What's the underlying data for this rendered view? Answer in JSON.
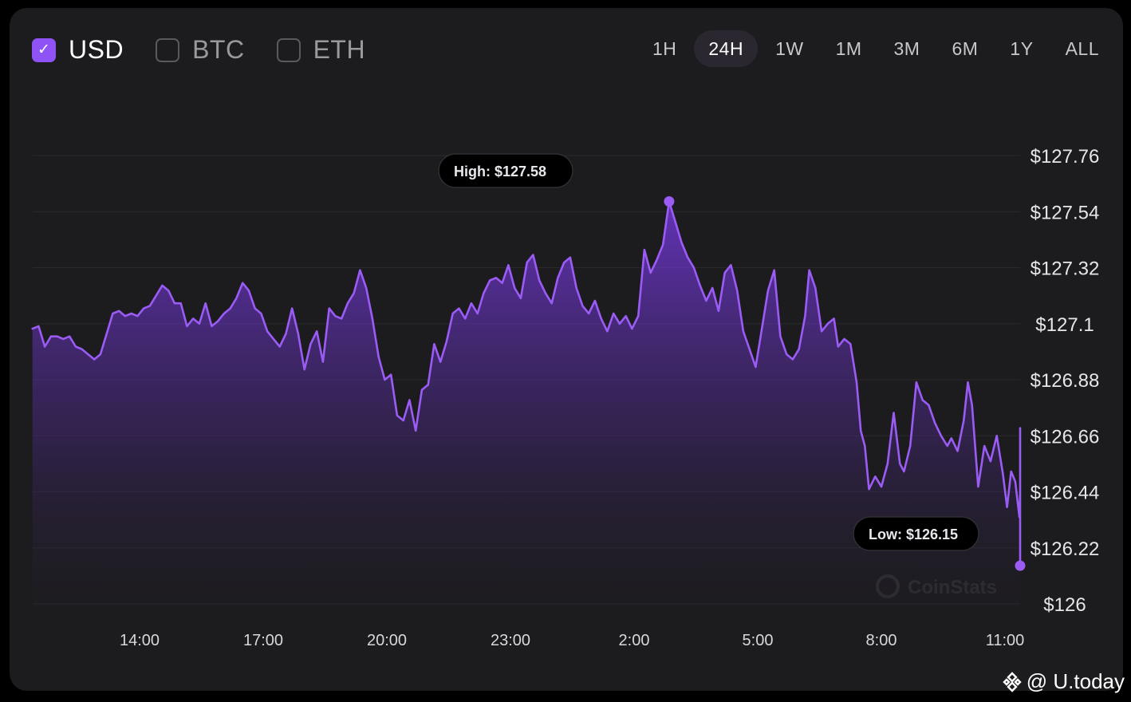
{
  "currencies": [
    {
      "label": "USD",
      "checked": true
    },
    {
      "label": "BTC",
      "checked": false
    },
    {
      "label": "ETH",
      "checked": false
    }
  ],
  "ranges": [
    {
      "label": "1H",
      "active": false
    },
    {
      "label": "24H",
      "active": true
    },
    {
      "label": "1W",
      "active": false
    },
    {
      "label": "1M",
      "active": false
    },
    {
      "label": "3M",
      "active": false
    },
    {
      "label": "6M",
      "active": false
    },
    {
      "label": "1Y",
      "active": false
    },
    {
      "label": "ALL",
      "active": false
    }
  ],
  "watermark": "CoinStats",
  "footer_brand": "@ U.today",
  "colors": {
    "accent": "#8e52f5",
    "card_bg": "#1c1c1e",
    "line": "#9b5cf6"
  },
  "chart_data": {
    "type": "area",
    "title": "",
    "xlabel": "",
    "ylabel": "",
    "x_ticks": [
      {
        "label": "14:00",
        "hour": 14
      },
      {
        "label": "17:00",
        "hour": 17
      },
      {
        "label": "20:00",
        "hour": 20
      },
      {
        "label": "23:00",
        "hour": 23
      },
      {
        "label": "2:00",
        "hour": 26
      },
      {
        "label": "5:00",
        "hour": 29
      },
      {
        "label": "8:00",
        "hour": 32
      },
      {
        "label": "11:00",
        "hour": 35
      }
    ],
    "y_ticks": [
      {
        "label": "$127.76",
        "value": 127.76
      },
      {
        "label": "$127.54",
        "value": 127.54
      },
      {
        "label": "$127.32",
        "value": 127.32
      },
      {
        "label": "$127.1",
        "value": 127.1
      },
      {
        "label": "$126.88",
        "value": 126.88
      },
      {
        "label": "$126.66",
        "value": 126.66
      },
      {
        "label": "$126.44",
        "value": 126.44
      },
      {
        "label": "$126.22",
        "value": 126.22
      },
      {
        "label": "$126",
        "value": 126.0
      }
    ],
    "ylim": [
      126.0,
      127.76
    ],
    "xlim": [
      11.4,
      35.35
    ],
    "grid": true,
    "series": [
      {
        "points": [
          [
            11.4,
            127.08
          ],
          [
            11.55,
            127.09
          ],
          [
            11.7,
            127.01
          ],
          [
            11.85,
            127.05
          ],
          [
            12.0,
            127.05
          ],
          [
            12.15,
            127.04
          ],
          [
            12.3,
            127.05
          ],
          [
            12.45,
            127.01
          ],
          [
            12.6,
            127.0
          ],
          [
            12.75,
            126.98
          ],
          [
            12.9,
            126.96
          ],
          [
            13.05,
            126.98
          ],
          [
            13.2,
            127.06
          ],
          [
            13.35,
            127.14
          ],
          [
            13.5,
            127.15
          ],
          [
            13.65,
            127.13
          ],
          [
            13.8,
            127.14
          ],
          [
            13.95,
            127.13
          ],
          [
            14.1,
            127.16
          ],
          [
            14.25,
            127.17
          ],
          [
            14.4,
            127.21
          ],
          [
            14.55,
            127.25
          ],
          [
            14.7,
            127.23
          ],
          [
            14.85,
            127.18
          ],
          [
            15.0,
            127.18
          ],
          [
            15.15,
            127.09
          ],
          [
            15.3,
            127.12
          ],
          [
            15.45,
            127.1
          ],
          [
            15.6,
            127.18
          ],
          [
            15.75,
            127.09
          ],
          [
            15.9,
            127.11
          ],
          [
            16.05,
            127.14
          ],
          [
            16.2,
            127.16
          ],
          [
            16.35,
            127.2
          ],
          [
            16.5,
            127.26
          ],
          [
            16.65,
            127.23
          ],
          [
            16.8,
            127.16
          ],
          [
            16.95,
            127.14
          ],
          [
            17.1,
            127.07
          ],
          [
            17.25,
            127.04
          ],
          [
            17.4,
            127.01
          ],
          [
            17.55,
            127.06
          ],
          [
            17.7,
            127.16
          ],
          [
            17.85,
            127.06
          ],
          [
            18.0,
            126.92
          ],
          [
            18.15,
            127.02
          ],
          [
            18.3,
            127.07
          ],
          [
            18.45,
            126.95
          ],
          [
            18.6,
            127.16
          ],
          [
            18.75,
            127.13
          ],
          [
            18.9,
            127.12
          ],
          [
            19.05,
            127.18
          ],
          [
            19.2,
            127.22
          ],
          [
            19.35,
            127.31
          ],
          [
            19.5,
            127.24
          ],
          [
            19.65,
            127.12
          ],
          [
            19.8,
            126.97
          ],
          [
            19.95,
            126.88
          ],
          [
            20.1,
            126.9
          ],
          [
            20.25,
            126.74
          ],
          [
            20.4,
            126.72
          ],
          [
            20.55,
            126.8
          ],
          [
            20.7,
            126.68
          ],
          [
            20.85,
            126.84
          ],
          [
            21.0,
            126.86
          ],
          [
            21.15,
            127.02
          ],
          [
            21.3,
            126.95
          ],
          [
            21.45,
            127.03
          ],
          [
            21.6,
            127.14
          ],
          [
            21.75,
            127.16
          ],
          [
            21.9,
            127.12
          ],
          [
            22.05,
            127.18
          ],
          [
            22.2,
            127.14
          ],
          [
            22.35,
            127.22
          ],
          [
            22.5,
            127.27
          ],
          [
            22.65,
            127.28
          ],
          [
            22.8,
            127.26
          ],
          [
            22.95,
            127.33
          ],
          [
            23.1,
            127.24
          ],
          [
            23.25,
            127.2
          ],
          [
            23.4,
            127.34
          ],
          [
            23.55,
            127.37
          ],
          [
            23.7,
            127.27
          ],
          [
            23.85,
            127.22
          ],
          [
            24.0,
            127.18
          ],
          [
            24.15,
            127.28
          ],
          [
            24.3,
            127.34
          ],
          [
            24.45,
            127.36
          ],
          [
            24.6,
            127.24
          ],
          [
            24.75,
            127.17
          ],
          [
            24.9,
            127.14
          ],
          [
            25.05,
            127.19
          ],
          [
            25.2,
            127.12
          ],
          [
            25.35,
            127.07
          ],
          [
            25.5,
            127.14
          ],
          [
            25.65,
            127.1
          ],
          [
            25.8,
            127.13
          ],
          [
            25.95,
            127.08
          ],
          [
            26.1,
            127.13
          ],
          [
            26.25,
            127.39
          ],
          [
            26.4,
            127.3
          ],
          [
            26.55,
            127.35
          ],
          [
            26.7,
            127.41
          ],
          [
            26.85,
            127.58
          ],
          [
            27.0,
            127.5
          ],
          [
            27.15,
            127.42
          ],
          [
            27.3,
            127.36
          ],
          [
            27.45,
            127.32
          ],
          [
            27.6,
            127.25
          ],
          [
            27.75,
            127.19
          ],
          [
            27.9,
            127.24
          ],
          [
            28.05,
            127.15
          ],
          [
            28.2,
            127.3
          ],
          [
            28.35,
            127.33
          ],
          [
            28.5,
            127.23
          ],
          [
            28.65,
            127.07
          ],
          [
            28.8,
            127.0
          ],
          [
            28.95,
            126.93
          ],
          [
            29.1,
            127.08
          ],
          [
            29.25,
            127.23
          ],
          [
            29.4,
            127.31
          ],
          [
            29.55,
            127.05
          ],
          [
            29.7,
            126.98
          ],
          [
            29.85,
            126.96
          ],
          [
            30.0,
            127.0
          ],
          [
            30.15,
            127.13
          ],
          [
            30.25,
            127.31
          ],
          [
            30.4,
            127.24
          ],
          [
            30.55,
            127.07
          ],
          [
            30.7,
            127.1
          ],
          [
            30.85,
            127.12
          ],
          [
            30.95,
            127.01
          ],
          [
            31.1,
            127.04
          ],
          [
            31.25,
            127.02
          ],
          [
            31.4,
            126.87
          ],
          [
            31.5,
            126.68
          ],
          [
            31.6,
            126.62
          ],
          [
            31.7,
            126.45
          ],
          [
            31.85,
            126.5
          ],
          [
            32.0,
            126.46
          ],
          [
            32.15,
            126.55
          ],
          [
            32.3,
            126.75
          ],
          [
            32.45,
            126.55
          ],
          [
            32.55,
            126.52
          ],
          [
            32.7,
            126.62
          ],
          [
            32.85,
            126.87
          ],
          [
            33.0,
            126.8
          ],
          [
            33.15,
            126.78
          ],
          [
            33.3,
            126.71
          ],
          [
            33.45,
            126.66
          ],
          [
            33.6,
            126.62
          ],
          [
            33.7,
            126.65
          ],
          [
            33.85,
            126.6
          ],
          [
            34.0,
            126.72
          ],
          [
            34.1,
            126.87
          ],
          [
            34.2,
            126.78
          ],
          [
            34.35,
            126.46
          ],
          [
            34.5,
            126.62
          ],
          [
            34.65,
            126.56
          ],
          [
            34.8,
            126.66
          ],
          [
            34.95,
            126.51
          ],
          [
            35.05,
            126.38
          ],
          [
            35.15,
            126.52
          ],
          [
            35.25,
            126.48
          ],
          [
            35.35,
            126.34
          ]
        ],
        "points_b": [
          [
            35.35,
            126.34
          ],
          [
            35.5,
            126.44
          ],
          [
            35.65,
            126.63
          ],
          [
            35.8,
            126.69
          ],
          [
            35.9,
            126.58
          ],
          [
            36.05,
            126.3
          ],
          [
            36.2,
            126.15
          ],
          [
            36.3,
            126.25
          ],
          [
            36.45,
            126.17
          ],
          [
            36.6,
            126.3
          ]
        ]
      }
    ],
    "annotations": [
      {
        "label": "High: $127.58",
        "value": 127.58
      },
      {
        "label": "Low: $126.15",
        "value": 126.15
      }
    ]
  }
}
